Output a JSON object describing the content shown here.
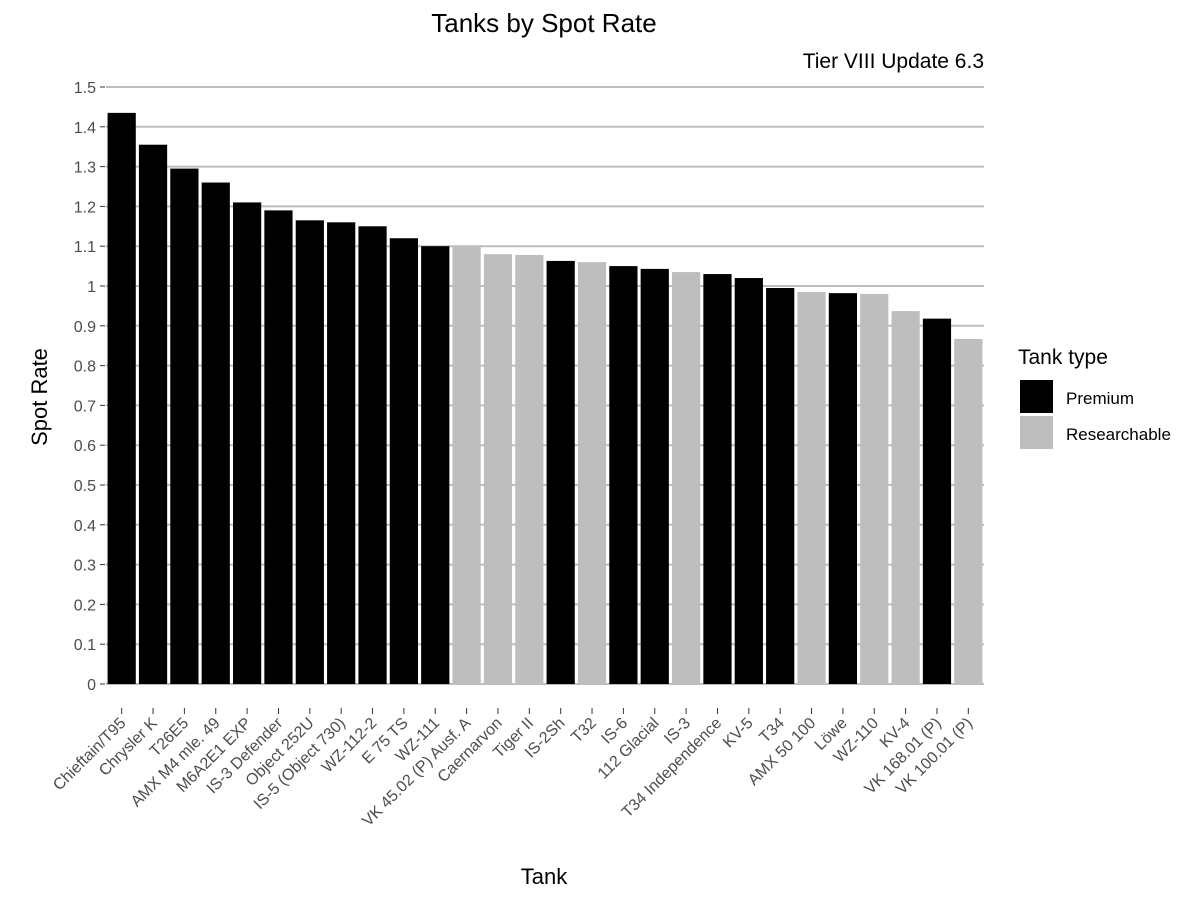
{
  "chart_data": {
    "type": "bar",
    "title": "Tanks by Spot Rate",
    "subtitle": "Tier VIII Update 6.3",
    "xlabel": "Tank",
    "ylabel": "Spot Rate",
    "ylim": [
      0,
      1.5
    ],
    "yticks": [
      "0",
      "0.1",
      "0.2",
      "0.3",
      "0.4",
      "0.5",
      "0.6",
      "0.7",
      "0.8",
      "0.9",
      "1",
      "1.1",
      "1.2",
      "1.3",
      "1.4",
      "1.5"
    ],
    "grid": "horizontal",
    "legend": {
      "title": "Tank type",
      "placement": "right",
      "entries": [
        {
          "name": "Premium",
          "color": "#000000"
        },
        {
          "name": "Researchable",
          "color": "#bebebe"
        }
      ]
    },
    "categories": [
      "Chieftain/T95",
      "Chrysler K",
      "T26E5",
      "AMX M4 mle. 49",
      "M6A2E1 EXP",
      "IS-3 Defender",
      "Object 252U",
      "IS-5 (Object 730)",
      "WZ-112-2",
      "E 75 TS",
      "WZ-111",
      "VK 45.02 (P) Ausf. A",
      "Caernarvon",
      "Tiger II",
      "IS-2Sh",
      "T32",
      "IS-6",
      "112 Glacial",
      "IS-3",
      "T34 Independence",
      "KV-5",
      "T34",
      "AMX 50 100",
      "Löwe",
      "WZ-110",
      "KV-4",
      "VK 168.01 (P)",
      "VK 100.01 (P)"
    ],
    "values": [
      1.435,
      1.355,
      1.295,
      1.26,
      1.21,
      1.19,
      1.165,
      1.16,
      1.15,
      1.12,
      1.1,
      1.1,
      1.08,
      1.078,
      1.063,
      1.06,
      1.05,
      1.043,
      1.035,
      1.03,
      1.02,
      0.995,
      0.985,
      0.982,
      0.98,
      0.937,
      0.918,
      0.867
    ],
    "types": [
      "Premium",
      "Premium",
      "Premium",
      "Premium",
      "Premium",
      "Premium",
      "Premium",
      "Premium",
      "Premium",
      "Premium",
      "Premium",
      "Researchable",
      "Researchable",
      "Researchable",
      "Premium",
      "Researchable",
      "Premium",
      "Premium",
      "Researchable",
      "Premium",
      "Premium",
      "Premium",
      "Researchable",
      "Premium",
      "Researchable",
      "Researchable",
      "Premium",
      "Researchable"
    ]
  }
}
